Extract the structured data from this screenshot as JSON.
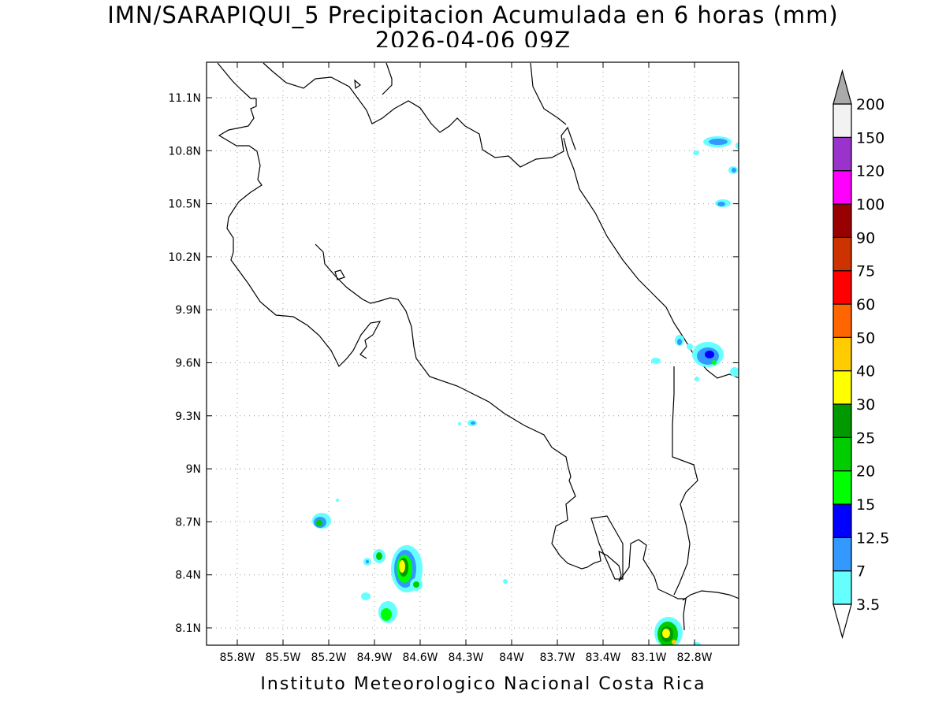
{
  "header": {
    "title": "IMN/SARAPIQUI_5 Precipitacion Acumulada en 6 horas (mm)",
    "subtitle": "2026-04-06 09Z"
  },
  "footer": {
    "credit": "Instituto Meteorologico Nacional Costa Rica"
  },
  "map": {
    "lat_labels": [
      "11.1N",
      "10.8N",
      "10.5N",
      "10.2N",
      "9.9N",
      "9.6N",
      "9.3N",
      "9N",
      "8.7N",
      "8.4N",
      "8.1N"
    ],
    "lon_labels": [
      "85.8W",
      "85.5W",
      "85.2W",
      "84.9W",
      "84.6W",
      "84.3W",
      "84W",
      "83.7W",
      "83.4W",
      "83.1W",
      "82.8W"
    ],
    "grid": "dotted",
    "coastline_color": "#000000"
  },
  "colorbar": {
    "levels": [
      "3.5",
      "7",
      "12.5",
      "15",
      "20",
      "25",
      "30",
      "40",
      "50",
      "60",
      "75",
      "90",
      "100",
      "120",
      "150",
      "200"
    ],
    "colors": [
      "#ffffff",
      "#66ffff",
      "#3399ff",
      "#0000ff",
      "#00ff00",
      "#00cc00",
      "#009900",
      "#ffff00",
      "#ffcc00",
      "#ff6600",
      "#ff0000",
      "#cc3300",
      "#990000",
      "#ff00ff",
      "#9933cc",
      "#f2f2f2",
      "#aaaaaa"
    ]
  }
}
